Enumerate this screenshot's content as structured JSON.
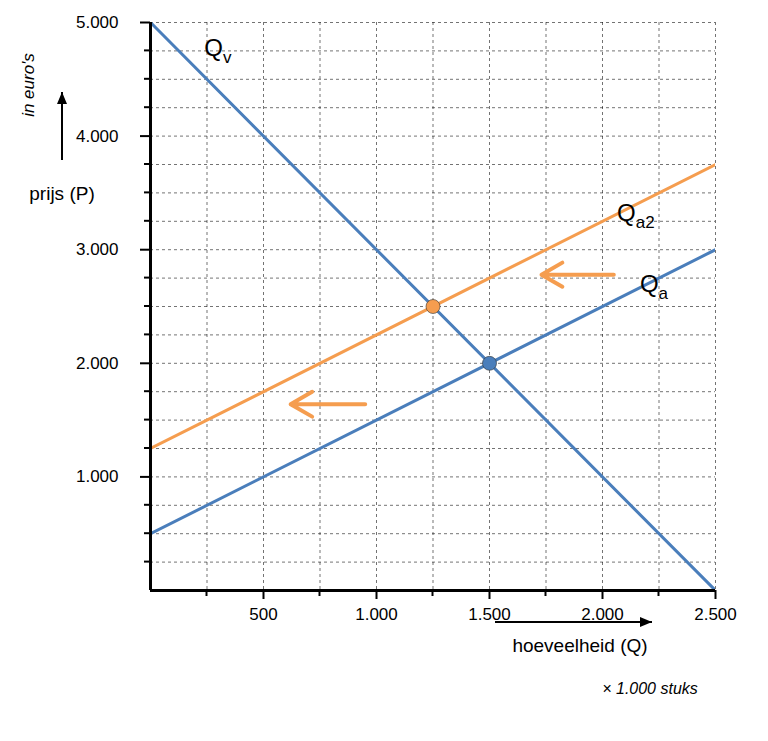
{
  "chart_data": {
    "type": "line",
    "xlabel": "hoeveelheid (Q)",
    "x_unit": "× 1.000 stuks",
    "ylabel": "prijs (P)",
    "y_unit": "in euro's",
    "x": [
      0,
      2500
    ],
    "series": [
      {
        "name": "Qv",
        "color": "#4a7ebb",
        "values": [
          5000,
          0
        ],
        "label_at": [
          300,
          4700
        ]
      },
      {
        "name": "Qa2",
        "color": "#f59d4f",
        "values": [
          1250,
          3750
        ],
        "label_at": [
          2150,
          3250
        ]
      },
      {
        "name": "Qa",
        "color": "#4a7ebb",
        "values": [
          500,
          3000
        ],
        "label_at": [
          2230,
          2620
        ]
      }
    ],
    "points": [
      {
        "x": 1500,
        "y": 2000,
        "color": "#4a7ebb"
      },
      {
        "x": 1250,
        "y": 2500,
        "color": "#f59d4f"
      }
    ],
    "arrows": [
      {
        "x1": 2050,
        "x2": 1730,
        "y": 2780,
        "color": "#f59d4f"
      },
      {
        "x1": 950,
        "x2": 620,
        "y": 1640,
        "color": "#f59d4f"
      }
    ],
    "xlim": [
      0,
      2500
    ],
    "ylim": [
      0,
      5000
    ],
    "xticks": [
      500,
      {
        "value": 1000,
        "label": "1.000"
      },
      {
        "value": 1500,
        "label": "1.500"
      },
      {
        "value": 2000,
        "label": "2.000"
      },
      {
        "value": 2500,
        "label": "2.500"
      }
    ],
    "yticks": [
      {
        "value": 1000,
        "label": "1.000"
      },
      {
        "value": 2000,
        "label": "2.000"
      },
      {
        "value": 3000,
        "label": "3.000"
      },
      {
        "value": 4000,
        "label": "4.000"
      },
      {
        "value": 5000,
        "label": "5.000"
      }
    ],
    "grid": true
  }
}
